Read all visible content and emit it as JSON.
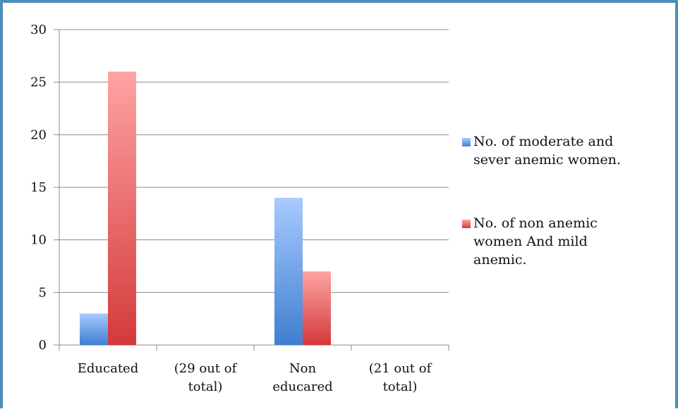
{
  "chart_data": {
    "type": "bar",
    "categories": [
      [
        "Educated"
      ],
      [
        "(29 out of",
        "total)"
      ],
      [
        "Non",
        "educared"
      ],
      [
        "(21 out of",
        "total)"
      ]
    ],
    "series": [
      {
        "name": "No. of moderate and sever anemic women.",
        "values": [
          3,
          null,
          14,
          null
        ],
        "color_top": "#a8caff",
        "color_bottom": "#3f7fd0"
      },
      {
        "name": "No. of non anemic women And mild anemic.",
        "values": [
          26,
          null,
          7,
          null
        ],
        "color_top": "#ffa3a3",
        "color_bottom": "#d43a3a"
      }
    ],
    "legend": [
      [
        "No. of moderate and",
        "sever anemic women."
      ],
      [
        "No. of non anemic",
        "women And mild",
        "anemic."
      ]
    ],
    "ylim": [
      0,
      30
    ],
    "yticks": [
      0,
      5,
      10,
      15,
      20,
      25,
      30
    ],
    "grid": true,
    "legend_position": "right"
  }
}
